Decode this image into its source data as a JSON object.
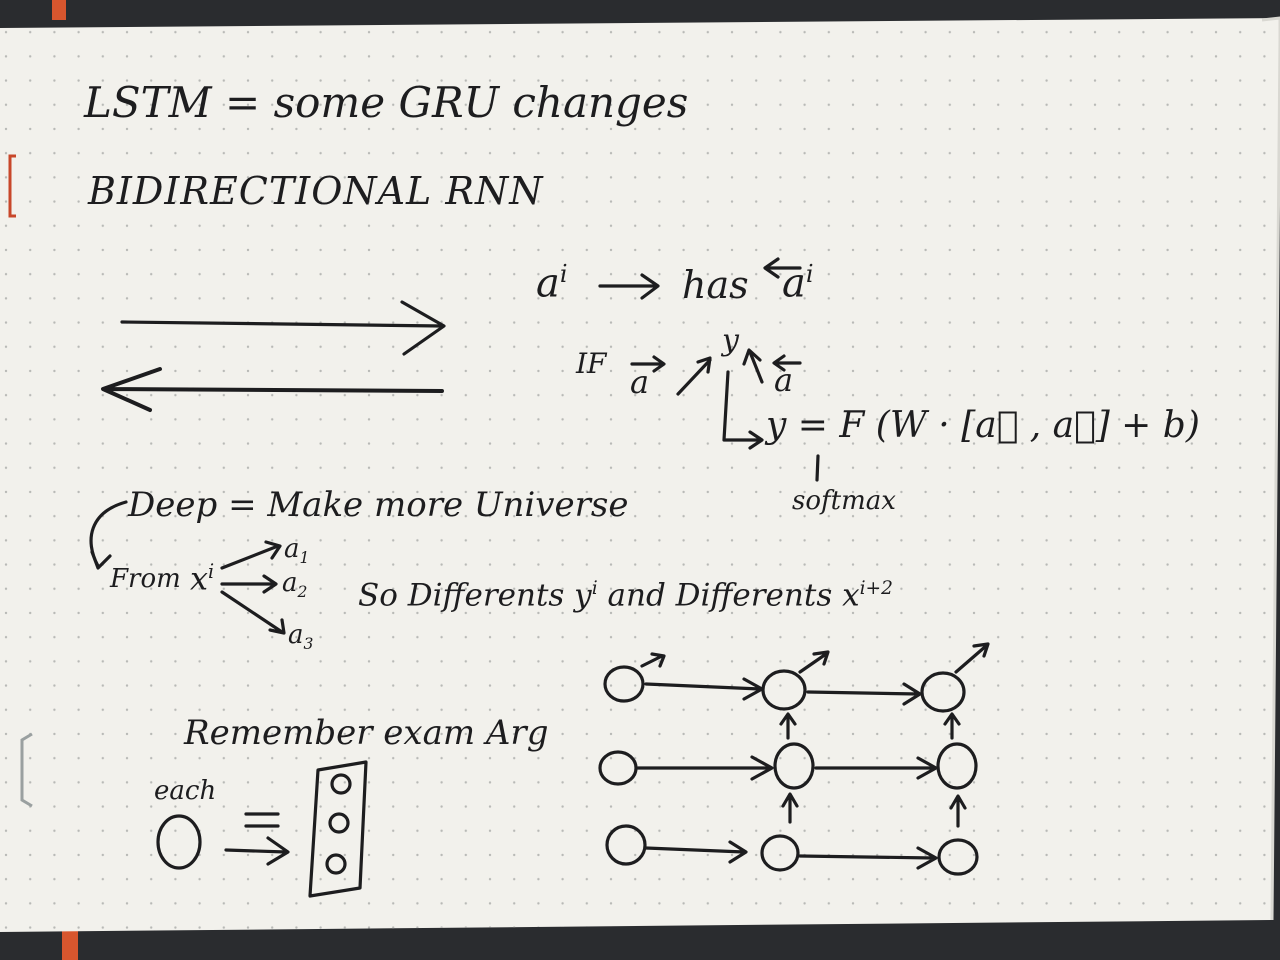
{
  "page": {
    "paper_color": "#f2f1ec",
    "dot_color": "#b8b9b6",
    "ink_color": "#1d1d1f",
    "binding_accent": "#d8562e"
  },
  "notes": {
    "title": "LSTM = some GRU changes",
    "subtitle": "BIDIRECTIONAL RNN",
    "activation_label": "a",
    "activation_sup": "i",
    "has_word": "has",
    "if_word": "IF",
    "output_y": "y",
    "formula": "y = F (W · [a⃗ , a⃖] + b)",
    "softmax_label": "softmax",
    "deep_line": "Deep = Make more Universe",
    "from_word": "From",
    "from_x": "x",
    "x_sup": "i",
    "branch_1": "a",
    "branch_1_sub": "1",
    "branch_2": "a",
    "branch_2_sub": "2",
    "branch_3": "a",
    "branch_3_sub": "3",
    "so_line_part1": "So Differents y",
    "so_line_sup1": "i",
    "so_line_part2": " and Differents x",
    "so_line_sup2": "i+2",
    "remember_line": "Remember exam Arg",
    "each_word": "each",
    "equals_sign": "="
  }
}
